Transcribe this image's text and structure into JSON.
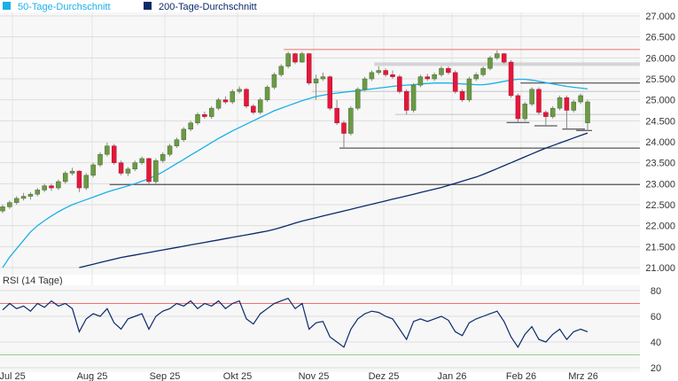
{
  "chart_data": [
    {
      "type": "candlestick",
      "legend": [
        {
          "name": "50-Tage-Durchschnitt",
          "color": "#1ab0e8"
        },
        {
          "name": "200-Tage-Durchschnitt",
          "color": "#0a2a6a"
        }
      ],
      "legend_position": "top-left",
      "ylim": [
        21000,
        27000
      ],
      "y_ticks": [
        "27.000",
        "26.500",
        "26.000",
        "25.500",
        "25.000",
        "24.500",
        "24.000",
        "23.500",
        "23.000",
        "22.500",
        "22.000",
        "21.500",
        "21.000"
      ],
      "y_tick_values": [
        27000,
        26500,
        26000,
        25500,
        25000,
        24500,
        24000,
        23500,
        23000,
        22500,
        22000,
        21500,
        21000
      ],
      "x_ticks": [
        "Jul 25",
        "Aug 25",
        "Sep 25",
        "Okt 25",
        "Nov 25",
        "Dez 25",
        "Jan 26",
        "Feb 26",
        "Mrz 26"
      ],
      "grid": true,
      "colors": {
        "up": "#6b9a44",
        "down": "#e4173a",
        "ma50": "#1ab0e8",
        "ma200": "#0a2a6a",
        "resistance": "#f07070",
        "support": "#333333",
        "band": "#cccccc"
      },
      "candles": [
        [
          22350,
          22500,
          22300,
          22450
        ],
        [
          22450,
          22600,
          22400,
          22550
        ],
        [
          22550,
          22700,
          22500,
          22650
        ],
        [
          22650,
          22780,
          22600,
          22700
        ],
        [
          22700,
          22800,
          22620,
          22750
        ],
        [
          22750,
          22900,
          22700,
          22850
        ],
        [
          22850,
          23000,
          22800,
          22950
        ],
        [
          22950,
          23000,
          22830,
          22900
        ],
        [
          22900,
          23100,
          22850,
          23050
        ],
        [
          23050,
          23300,
          23000,
          23250
        ],
        [
          23250,
          23380,
          23200,
          23300
        ],
        [
          23300,
          23320,
          22800,
          22900
        ],
        [
          22900,
          23250,
          22850,
          23200
        ],
        [
          23200,
          23500,
          23150,
          23450
        ],
        [
          23450,
          23750,
          23400,
          23700
        ],
        [
          23700,
          23980,
          23650,
          23900
        ],
        [
          23900,
          23950,
          23450,
          23500
        ],
        [
          23500,
          23550,
          23200,
          23250
        ],
        [
          23250,
          23400,
          23180,
          23350
        ],
        [
          23350,
          23550,
          23300,
          23500
        ],
        [
          23500,
          23650,
          23450,
          23600
        ],
        [
          23600,
          23620,
          22980,
          23050
        ],
        [
          23050,
          23600,
          23000,
          23550
        ],
        [
          23550,
          23750,
          23500,
          23700
        ],
        [
          23700,
          23950,
          23650,
          23900
        ],
        [
          23900,
          24100,
          23850,
          24050
        ],
        [
          24050,
          24350,
          24000,
          24300
        ],
        [
          24300,
          24500,
          24250,
          24450
        ],
        [
          24450,
          24700,
          24400,
          24650
        ],
        [
          24650,
          24720,
          24550,
          24600
        ],
        [
          24600,
          24850,
          24550,
          24800
        ],
        [
          24800,
          25050,
          24750,
          25000
        ],
        [
          25000,
          25080,
          24900,
          24950
        ],
        [
          24950,
          25250,
          24900,
          25200
        ],
        [
          25200,
          25320,
          25150,
          25250
        ],
        [
          25250,
          25280,
          24800,
          24850
        ],
        [
          24850,
          24900,
          24650,
          24700
        ],
        [
          24700,
          25050,
          24650,
          25000
        ],
        [
          25000,
          25350,
          24950,
          25300
        ],
        [
          25300,
          25650,
          25250,
          25600
        ],
        [
          25600,
          25850,
          25550,
          25800
        ],
        [
          25800,
          26150,
          25750,
          26100
        ],
        [
          26100,
          26120,
          25850,
          25900
        ],
        [
          25900,
          26150,
          25880,
          26100
        ],
        [
          26100,
          26120,
          25350,
          25400
        ],
        [
          25400,
          25600,
          25000,
          25500
        ],
        [
          25500,
          25650,
          25450,
          25550
        ],
        [
          25550,
          25580,
          24750,
          24800
        ],
        [
          24800,
          25000,
          24400,
          24450
        ],
        [
          24450,
          24500,
          23850,
          24200
        ],
        [
          24200,
          24850,
          24150,
          24800
        ],
        [
          24800,
          25300,
          24750,
          25250
        ],
        [
          25250,
          25550,
          25200,
          25500
        ],
        [
          25500,
          25700,
          25450,
          25650
        ],
        [
          25650,
          25800,
          25600,
          25700
        ],
        [
          25700,
          25750,
          25550,
          25600
        ],
        [
          25600,
          25700,
          25500,
          25550
        ],
        [
          25550,
          25600,
          25150,
          25200
        ],
        [
          25200,
          25250,
          24650,
          24750
        ],
        [
          24750,
          25400,
          24700,
          25350
        ],
        [
          25350,
          25600,
          25300,
          25550
        ],
        [
          25550,
          25620,
          25450,
          25500
        ],
        [
          25500,
          25650,
          25450,
          25600
        ],
        [
          25600,
          25800,
          25550,
          25750
        ],
        [
          25750,
          25800,
          25600,
          25650
        ],
        [
          25650,
          25700,
          25150,
          25200
        ],
        [
          25200,
          25250,
          24950,
          25000
        ],
        [
          25000,
          25550,
          24950,
          25500
        ],
        [
          25500,
          25650,
          25450,
          25600
        ],
        [
          25600,
          25800,
          25550,
          25750
        ],
        [
          25750,
          26050,
          25700,
          26000
        ],
        [
          26000,
          26180,
          25950,
          26100
        ],
        [
          26100,
          26120,
          25850,
          25900
        ],
        [
          25900,
          25950,
          25050,
          25100
        ],
        [
          25100,
          25150,
          24460,
          24550
        ],
        [
          24550,
          24950,
          24500,
          24900
        ],
        [
          24900,
          25300,
          24850,
          25250
        ],
        [
          25250,
          25300,
          24650,
          24700
        ],
        [
          24700,
          24750,
          24380,
          24600
        ],
        [
          24600,
          24850,
          24550,
          24800
        ],
        [
          24800,
          25100,
          24750,
          25050
        ],
        [
          25050,
          25100,
          24300,
          24750
        ],
        [
          24750,
          25000,
          24700,
          24950
        ],
        [
          24950,
          25150,
          24900,
          25100
        ],
        [
          24450,
          25000,
          24270,
          24950
        ]
      ],
      "ma50": [
        21000,
        21250,
        21450,
        21650,
        21850,
        22000,
        22120,
        22230,
        22330,
        22420,
        22500,
        22560,
        22620,
        22680,
        22740,
        22800,
        22850,
        22900,
        22950,
        23000,
        23060,
        23120,
        23200,
        23280,
        23380,
        23480,
        23580,
        23680,
        23780,
        23880,
        23980,
        24080,
        24170,
        24260,
        24340,
        24420,
        24500,
        24580,
        24660,
        24740,
        24800,
        24860,
        24920,
        24980,
        25030,
        25080,
        25110,
        25140,
        25160,
        25180,
        25200,
        25220,
        25240,
        25260,
        25280,
        25300,
        25320,
        25340,
        25350,
        25360,
        25380,
        25390,
        25400,
        25400,
        25400,
        25390,
        25380,
        25370,
        25360,
        25360,
        25380,
        25410,
        25440,
        25470,
        25490,
        25490,
        25470,
        25440,
        25410,
        25380,
        25350,
        25320,
        25300,
        25280,
        25260
      ],
      "ma200": [
        null,
        null,
        null,
        null,
        null,
        null,
        null,
        null,
        null,
        null,
        null,
        21000,
        21040,
        21080,
        21120,
        21160,
        21200,
        21240,
        21270,
        21300,
        21330,
        21360,
        21390,
        21420,
        21450,
        21480,
        21510,
        21540,
        21570,
        21600,
        21630,
        21660,
        21690,
        21720,
        21750,
        21780,
        21810,
        21840,
        21870,
        21910,
        21960,
        22010,
        22060,
        22110,
        22150,
        22190,
        22230,
        22270,
        22310,
        22350,
        22390,
        22430,
        22470,
        22510,
        22550,
        22590,
        22630,
        22670,
        22710,
        22750,
        22790,
        22830,
        22870,
        22910,
        22960,
        23010,
        23060,
        23110,
        23160,
        23220,
        23290,
        23360,
        23430,
        23500,
        23570,
        23640,
        23710,
        23780,
        23850,
        23910,
        23970,
        24030,
        24090,
        24150,
        24210
      ],
      "levels": [
        {
          "value": 26200,
          "kind": "resistance",
          "from": 41,
          "to": 84
        },
        {
          "value": 25850,
          "kind": "band",
          "from": 54,
          "to": 84
        },
        {
          "value": 25400,
          "kind": "support",
          "from": 75,
          "to": 84
        },
        {
          "value": 25200,
          "kind": "band",
          "from": 45,
          "to": 84
        },
        {
          "value": 24650,
          "kind": "band",
          "from": 57,
          "to": 84
        },
        {
          "value": 23850,
          "kind": "support",
          "from": 49,
          "to": 84
        },
        {
          "value": 22980,
          "kind": "support",
          "from": 16,
          "to": 84
        },
        {
          "value": 24460,
          "kind": "support",
          "from": 73,
          "to": 75
        },
        {
          "value": 24380,
          "kind": "support",
          "from": 77,
          "to": 79
        },
        {
          "value": 24300,
          "kind": "support",
          "from": 81,
          "to": 83
        },
        {
          "value": 24270,
          "kind": "support",
          "from": 83,
          "to": 84
        }
      ]
    },
    {
      "type": "line",
      "title": "RSI (14 Tage)",
      "ylim": [
        20,
        80
      ],
      "y_ticks": [
        "80",
        "60",
        "40",
        "20"
      ],
      "y_tick_values": [
        80,
        60,
        40,
        20
      ],
      "overbought": 70,
      "oversold": 30,
      "colors": {
        "line": "#0a2a6a",
        "overbought": "#f07070",
        "oversold": "#90d090"
      },
      "values": [
        65,
        70,
        66,
        68,
        64,
        70,
        67,
        72,
        68,
        70,
        66,
        48,
        58,
        62,
        60,
        66,
        55,
        50,
        58,
        60,
        62,
        50,
        60,
        64,
        66,
        70,
        68,
        72,
        66,
        70,
        68,
        72,
        66,
        70,
        72,
        58,
        54,
        62,
        66,
        70,
        72,
        74,
        66,
        70,
        50,
        55,
        56,
        44,
        40,
        36,
        50,
        58,
        62,
        64,
        63,
        60,
        58,
        50,
        42,
        56,
        58,
        56,
        58,
        60,
        57,
        48,
        45,
        55,
        58,
        60,
        62,
        64,
        56,
        44,
        36,
        46,
        52,
        42,
        40,
        46,
        50,
        42,
        48,
        50,
        48
      ]
    }
  ]
}
